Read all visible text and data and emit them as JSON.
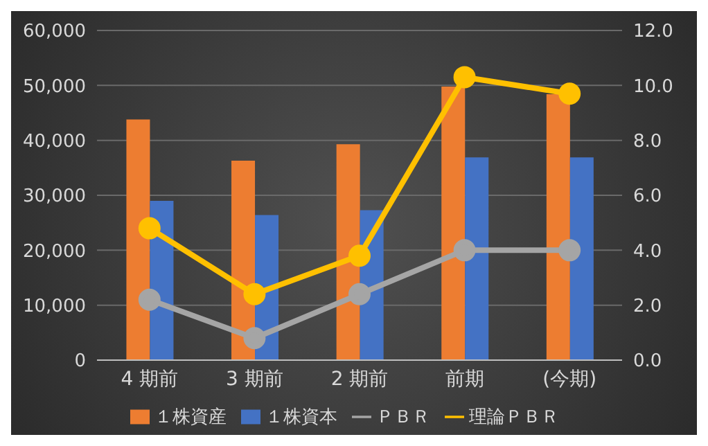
{
  "chart_data": {
    "type": "bar",
    "categories": [
      "4 期前",
      "3 期前",
      "2 期前",
      "前期",
      "(今期)"
    ],
    "series": [
      {
        "name": "１株資産",
        "color": "#ed7d31",
        "values": [
          43800,
          36300,
          39300,
          49800,
          48400
        ]
      },
      {
        "name": "１株資本",
        "color": "#4472c4",
        "values": [
          29000,
          26400,
          27300,
          36900,
          36900
        ]
      },
      {
        "name": "ＰＢＲ",
        "type": "line",
        "axis": "y2",
        "color": "#a5a5a5",
        "values": [
          2.2,
          0.8,
          2.4,
          4.0,
          4.0
        ]
      },
      {
        "name": "理論ＰＢＲ",
        "type": "line",
        "axis": "y2",
        "color": "#ffc000",
        "values": [
          4.8,
          2.4,
          3.8,
          10.3,
          9.7
        ]
      }
    ],
    "ylim": [
      0,
      60000
    ],
    "yticks": [
      {
        "value": 0,
        "label": "0"
      },
      {
        "value": 10000,
        "label": "10,000"
      },
      {
        "value": 20000,
        "label": "20,000"
      },
      {
        "value": 30000,
        "label": "30,000"
      },
      {
        "value": 40000,
        "label": "40,000"
      },
      {
        "value": 50000,
        "label": "50,000"
      },
      {
        "value": 60000,
        "label": "60,000"
      }
    ],
    "y2lim": [
      0,
      12
    ],
    "y2ticks": [
      {
        "value": 0,
        "label": "0.0"
      },
      {
        "value": 2,
        "label": "2.0"
      },
      {
        "value": 4,
        "label": "4.0"
      },
      {
        "value": 6,
        "label": "6.0"
      },
      {
        "value": 8,
        "label": "8.0"
      },
      {
        "value": 10,
        "label": "10.0"
      },
      {
        "value": 12,
        "label": "12.0"
      }
    ],
    "grid": "y",
    "legend": "bottom",
    "marker": "circle"
  }
}
